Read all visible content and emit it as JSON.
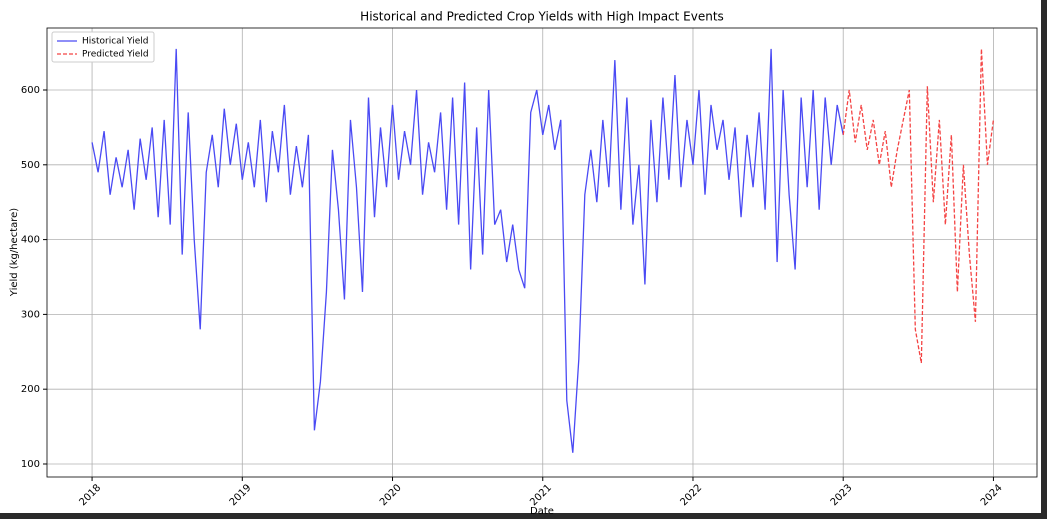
{
  "chart_data": {
    "type": "line",
    "title": "Historical and Predicted Crop Yields with High Impact Events",
    "xlabel": "Date",
    "ylabel": "Yield (kg/hectare)",
    "x": [
      2018,
      2018.04,
      2018.08,
      2018.12,
      2018.16,
      2018.2,
      2018.24,
      2018.28,
      2018.32,
      2018.36,
      2018.4,
      2018.44,
      2018.48,
      2018.52,
      2018.56,
      2018.6,
      2018.64,
      2018.68,
      2018.72,
      2018.76,
      2018.8,
      2018.84,
      2018.88,
      2018.92,
      2018.96,
      2019,
      2019.04,
      2019.08,
      2019.12,
      2019.16,
      2019.2,
      2019.24,
      2019.28,
      2019.32,
      2019.36,
      2019.4,
      2019.44,
      2019.48,
      2019.52,
      2019.56,
      2019.6,
      2019.64,
      2019.68,
      2019.72,
      2019.76,
      2019.8,
      2019.84,
      2019.88,
      2019.92,
      2019.96,
      2020,
      2020.04,
      2020.08,
      2020.12,
      2020.16,
      2020.2,
      2020.24,
      2020.28,
      2020.32,
      2020.36,
      2020.4,
      2020.44,
      2020.48,
      2020.52,
      2020.56,
      2020.6,
      2020.64,
      2020.68,
      2020.72,
      2020.76,
      2020.8,
      2020.84,
      2020.88,
      2020.92,
      2020.96,
      2021,
      2021.04,
      2021.08,
      2021.12,
      2021.16,
      2021.2,
      2021.24,
      2021.28,
      2021.32,
      2021.36,
      2021.4,
      2021.44,
      2021.48,
      2021.52,
      2021.56,
      2021.6,
      2021.64,
      2021.68,
      2021.72,
      2021.76,
      2021.8,
      2021.84,
      2021.88,
      2021.92,
      2021.96,
      2022,
      2022.04,
      2022.08,
      2022.12,
      2022.16,
      2022.2,
      2022.24,
      2022.28,
      2022.32,
      2022.36,
      2022.4,
      2022.44,
      2022.48,
      2022.52,
      2022.56,
      2022.6,
      2022.64,
      2022.68,
      2022.72,
      2022.76,
      2022.8,
      2022.84,
      2022.88,
      2022.92,
      2022.96,
      2023,
      2023.04,
      2023.08,
      2023.12,
      2023.16,
      2023.2,
      2023.24,
      2023.28,
      2023.32,
      2023.36,
      2023.4,
      2023.44,
      2023.48,
      2023.52,
      2023.56,
      2023.6,
      2023.64,
      2023.68,
      2023.72,
      2023.76,
      2023.8,
      2023.84,
      2023.88,
      2023.92,
      2023.96,
      2024
    ],
    "series": [
      {
        "name": "Historical Yield",
        "color": "#4a4af4",
        "linestyle": "solid",
        "values": [
          530,
          490,
          545,
          460,
          510,
          470,
          520,
          440,
          535,
          480,
          550,
          430,
          560,
          420,
          655,
          380,
          570,
          400,
          280,
          490,
          540,
          470,
          575,
          500,
          555,
          480,
          530,
          470,
          560,
          450,
          545,
          490,
          580,
          460,
          525,
          470,
          540,
          145,
          210,
          330,
          520,
          440,
          320,
          560,
          470,
          330,
          590,
          430,
          550,
          470,
          580,
          480,
          545,
          500,
          600,
          460,
          530,
          490,
          570,
          440,
          590,
          420,
          610,
          360,
          550,
          380,
          600,
          420,
          440,
          370,
          420,
          360,
          335,
          570,
          600,
          540,
          580,
          520,
          560,
          185,
          115,
          240,
          460,
          520,
          450,
          560,
          470,
          640,
          440,
          590,
          420,
          500,
          340,
          560,
          450,
          590,
          480,
          620,
          470,
          560,
          500,
          600,
          460,
          580,
          520,
          560,
          480,
          550,
          430,
          540,
          470,
          570,
          440,
          655,
          370,
          600,
          460,
          360,
          590,
          470,
          600,
          440,
          590,
          500,
          580,
          540,
          null,
          null,
          null,
          null,
          null,
          null,
          null,
          null,
          null,
          null,
          null,
          null,
          null,
          null,
          null,
          null,
          null,
          null,
          null,
          null,
          null,
          null,
          null,
          null,
          null
        ]
      },
      {
        "name": "Predicted Yield",
        "color": "#f44444",
        "linestyle": "dashed",
        "values": [
          null,
          null,
          null,
          null,
          null,
          null,
          null,
          null,
          null,
          null,
          null,
          null,
          null,
          null,
          null,
          null,
          null,
          null,
          null,
          null,
          null,
          null,
          null,
          null,
          null,
          null,
          null,
          null,
          null,
          null,
          null,
          null,
          null,
          null,
          null,
          null,
          null,
          null,
          null,
          null,
          null,
          null,
          null,
          null,
          null,
          null,
          null,
          null,
          null,
          null,
          null,
          null,
          null,
          null,
          null,
          null,
          null,
          null,
          null,
          null,
          null,
          null,
          null,
          null,
          null,
          null,
          null,
          null,
          null,
          null,
          null,
          null,
          null,
          null,
          null,
          null,
          null,
          null,
          null,
          null,
          null,
          null,
          null,
          null,
          null,
          null,
          null,
          null,
          null,
          null,
          null,
          null,
          null,
          null,
          null,
          null,
          null,
          null,
          null,
          null,
          null,
          null,
          null,
          null,
          null,
          null,
          null,
          null,
          null,
          null,
          null,
          null,
          null,
          null,
          null,
          null,
          null,
          null,
          null,
          null,
          null,
          null,
          null,
          null,
          null,
          540,
          600,
          530,
          580,
          520,
          560,
          500,
          545,
          470,
          520,
          560,
          600,
          280,
          235,
          605,
          450,
          560,
          420,
          540,
          330,
          500,
          380,
          290,
          655,
          500,
          560
        ]
      }
    ],
    "xlim": [
      2017.7,
      2024.29
    ],
    "xticks": [
      2018,
      2019,
      2020,
      2021,
      2022,
      2023,
      2024
    ],
    "ylim": [
      82.6,
      682.9
    ],
    "yticks": [
      100,
      200,
      300,
      400,
      500,
      600
    ],
    "grid": true,
    "legend": "upper-left"
  }
}
